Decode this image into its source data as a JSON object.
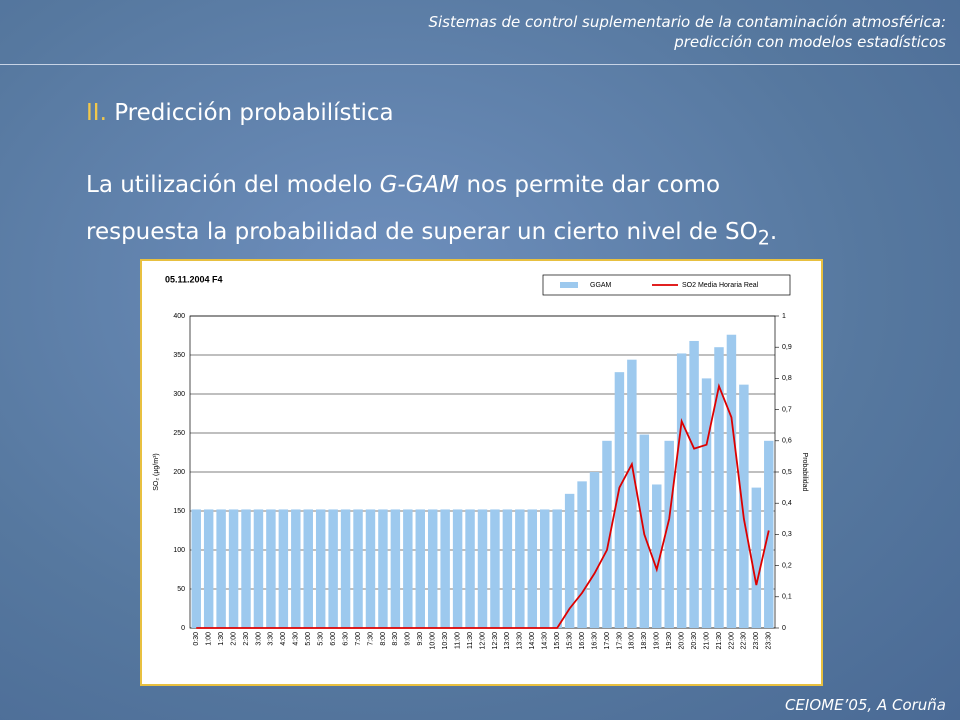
{
  "header": {
    "lines": [
      "Sistemas de control suplementario de la contaminación atmosférica:",
      "predicción con modelos estadísticos"
    ]
  },
  "heading": {
    "number": "II.",
    "text": "Predicción probabilística"
  },
  "body": {
    "parts": [
      "La utilización del modelo ",
      "G-GAM",
      " nos permite dar como",
      "respuesta la probabilidad de superar un cierto nivel de SO",
      "2",
      "."
    ]
  },
  "footer": "CEIOME’05, A Coruña",
  "chart_data": {
    "type": "bar-line",
    "title": "05.11.2004 F4",
    "y_label": "SO₂ (µg/m³)",
    "y2_label": "Probabilidad",
    "categories": [
      "0:30",
      "1:00",
      "1:30",
      "2:00",
      "2:30",
      "3:00",
      "3:30",
      "4:00",
      "4:30",
      "5:00",
      "5:30",
      "6:00",
      "6:30",
      "7:00",
      "7:30",
      "8:00",
      "8:30",
      "9:00",
      "9:30",
      "10:00",
      "10:30",
      "11:00",
      "11:30",
      "12:00",
      "12:30",
      "13:00",
      "13:30",
      "14:00",
      "14:30",
      "15:00",
      "15:30",
      "16:00",
      "16:30",
      "17:00",
      "17:30",
      "18:00",
      "18:30",
      "19:00",
      "19:30",
      "20:00",
      "20:30",
      "21:00",
      "21:30",
      "22:00",
      "22:30",
      "23:00",
      "23:30"
    ],
    "series": [
      {
        "name": "GGAM",
        "color": "#9dc9ee",
        "axis": "y2",
        "values": [
          0.38,
          0.38,
          0.38,
          0.38,
          0.38,
          0.38,
          0.38,
          0.38,
          0.38,
          0.38,
          0.38,
          0.38,
          0.38,
          0.38,
          0.38,
          0.38,
          0.38,
          0.38,
          0.38,
          0.38,
          0.38,
          0.38,
          0.38,
          0.38,
          0.38,
          0.38,
          0.38,
          0.38,
          0.38,
          0.38,
          0.43,
          0.47,
          0.5,
          0.6,
          0.82,
          0.86,
          0.62,
          0.46,
          0.6,
          0.88,
          0.92,
          0.8,
          0.9,
          0.94,
          0.78,
          0.45,
          0.6
        ]
      },
      {
        "name": "SO2 Media Horaria Real",
        "color": "#dd0000",
        "values": [
          0,
          0,
          0,
          0,
          0,
          0,
          0,
          0,
          0,
          0,
          0,
          0,
          0,
          0,
          0,
          0,
          0,
          0,
          0,
          0,
          0,
          0,
          0,
          0,
          0,
          0,
          0,
          0,
          0,
          0,
          25,
          45,
          70,
          100,
          180,
          210,
          120,
          75,
          140,
          265,
          230,
          235,
          310,
          270,
          140,
          55,
          125
        ]
      }
    ],
    "ylim": [
      0,
      400
    ],
    "yticks": [
      0,
      50,
      100,
      150,
      200,
      250,
      300,
      350,
      400
    ],
    "y2lim": [
      0,
      1
    ],
    "y2ticks": [
      0,
      {
        "value": 0.1,
        "label": "0,1"
      },
      {
        "value": 0.2,
        "label": "0,2"
      },
      {
        "value": 0.3,
        "label": "0,3"
      },
      {
        "value": 0.4,
        "label": "0,4"
      },
      {
        "value": 0.5,
        "label": "0,5"
      },
      {
        "value": 0.6,
        "label": "0,6"
      },
      {
        "value": 0.7,
        "label": "0,7"
      },
      {
        "value": 0.8,
        "label": "0,8"
      },
      {
        "value": 0.9,
        "label": "0,9"
      },
      1
    ],
    "grid": true,
    "legend": "top-right"
  }
}
